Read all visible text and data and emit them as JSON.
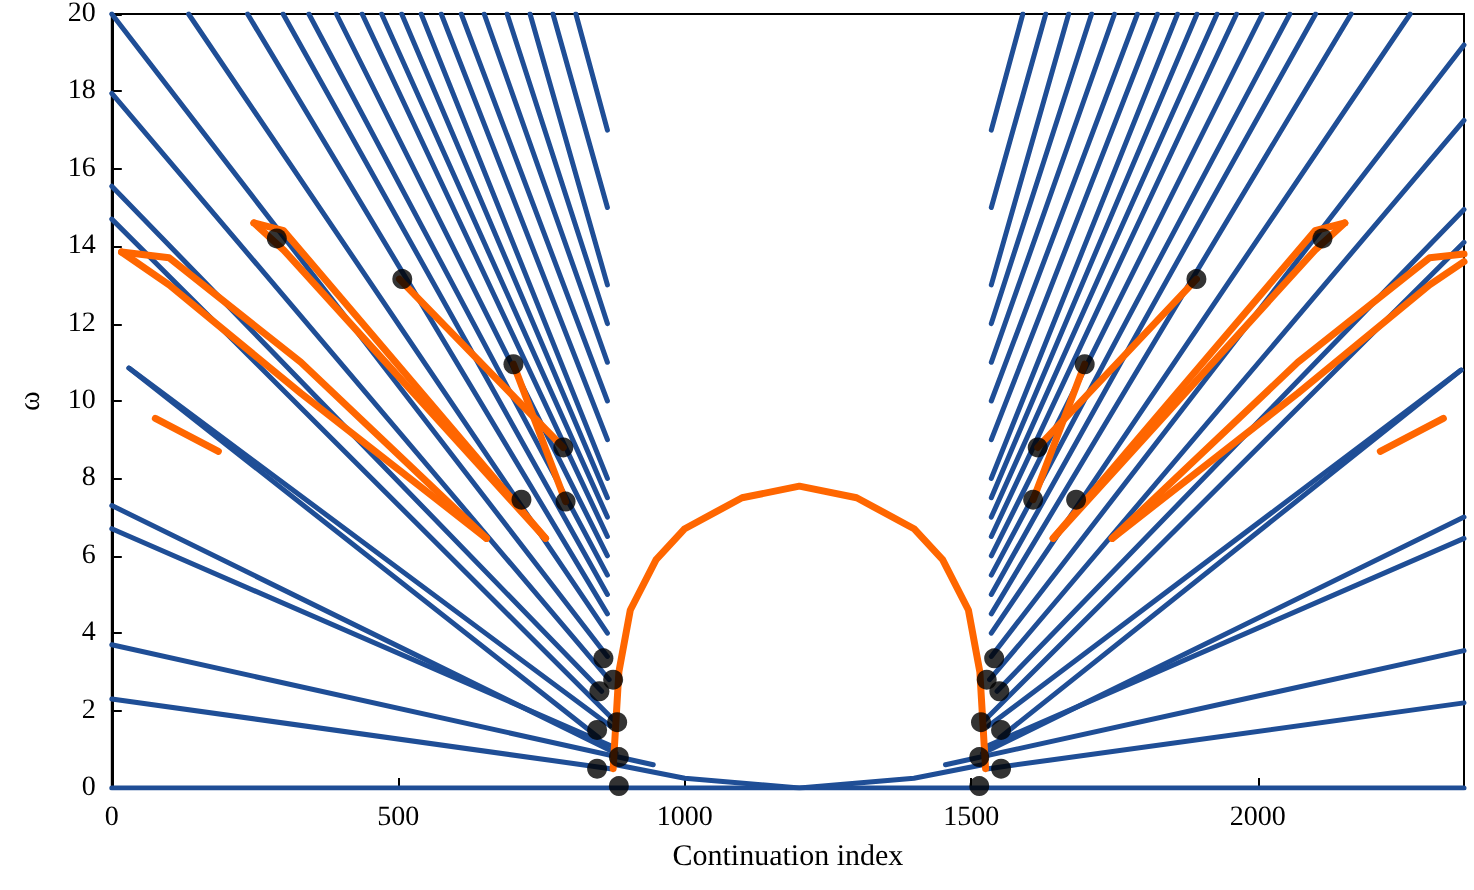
{
  "chart_data": {
    "type": "line",
    "xlabel": "Continuation index",
    "ylabel": "ω",
    "xlim": [
      0,
      2360
    ],
    "ylim": [
      0,
      20
    ],
    "xticks": [
      0,
      500,
      1000,
      1500,
      2000
    ],
    "yticks": [
      0,
      2,
      4,
      6,
      8,
      10,
      12,
      14,
      16,
      18,
      20
    ],
    "grid": false,
    "marker": "none",
    "line_style": "solid",
    "series": [
      {
        "color": "#1f4e96",
        "x": [
          0,
          2360
        ],
        "values": [
          0,
          0
        ]
      },
      {
        "color": "#1f4e96",
        "x": [
          880,
          1000,
          1200,
          1400,
          1520
        ],
        "values": [
          0.6,
          0.25,
          0,
          0.25,
          0.6
        ]
      },
      {
        "color": "#1f4e96",
        "x": [
          0,
          865
        ],
        "values": [
          20,
          3.4
        ]
      },
      {
        "color": "#1f4e96",
        "x": [
          0,
          868
        ],
        "values": [
          17.95,
          2.8
        ]
      },
      {
        "color": "#1f4e96",
        "x": [
          0,
          855
        ],
        "values": [
          15.55,
          2.5
        ]
      },
      {
        "color": "#1f4e96",
        "x": [
          0,
          880
        ],
        "values": [
          14.7,
          1.7
        ]
      },
      {
        "color": "#1f4e96",
        "x": [
          30,
          850
        ],
        "values": [
          10.85,
          1.3
        ]
      },
      {
        "color": "#1f4e96",
        "x": [
          30,
          870
        ],
        "values": [
          10.85,
          1.6
        ]
      },
      {
        "color": "#1f4e96",
        "x": [
          0,
          880
        ],
        "values": [
          7.3,
          0.9
        ]
      },
      {
        "color": "#1f4e96",
        "x": [
          0,
          870
        ],
        "values": [
          6.7,
          1.1
        ]
      },
      {
        "color": "#1f4e96",
        "x": [
          0,
          945
        ],
        "values": [
          3.7,
          0.6
        ]
      },
      {
        "color": "#1f4e96",
        "x": [
          0,
          870
        ],
        "values": [
          2.3,
          0.5
        ]
      },
      {
        "color": "#1f4e96",
        "x": [
          134,
          865
        ],
        "values": [
          20,
          4
        ]
      },
      {
        "color": "#1f4e96",
        "x": [
          237,
          865
        ],
        "values": [
          20,
          4.5
        ]
      },
      {
        "color": "#1f4e96",
        "x": [
          299,
          865
        ],
        "values": [
          20,
          5
        ]
      },
      {
        "color": "#1f4e96",
        "x": [
          344,
          865
        ],
        "values": [
          20,
          5.5
        ]
      },
      {
        "color": "#1f4e96",
        "x": [
          392,
          865
        ],
        "values": [
          20,
          6
        ]
      },
      {
        "color": "#1f4e96",
        "x": [
          437,
          865
        ],
        "values": [
          20,
          6.5
        ]
      },
      {
        "color": "#1f4e96",
        "x": [
          471,
          865
        ],
        "values": [
          20,
          7
        ]
      },
      {
        "color": "#1f4e96",
        "x": [
          506,
          865
        ],
        "values": [
          20,
          7.5
        ]
      },
      {
        "color": "#1f4e96",
        "x": [
          540,
          865
        ],
        "values": [
          20,
          8
        ]
      },
      {
        "color": "#1f4e96",
        "x": [
          575,
          865
        ],
        "values": [
          20,
          9
        ]
      },
      {
        "color": "#1f4e96",
        "x": [
          610,
          865
        ],
        "values": [
          20,
          10
        ]
      },
      {
        "color": "#1f4e96",
        "x": [
          650,
          865
        ],
        "values": [
          20,
          11
        ]
      },
      {
        "color": "#1f4e96",
        "x": [
          690,
          865
        ],
        "values": [
          20,
          12
        ]
      },
      {
        "color": "#1f4e96",
        "x": [
          730,
          865
        ],
        "values": [
          20,
          13
        ]
      },
      {
        "color": "#1f4e96",
        "x": [
          770,
          865
        ],
        "values": [
          20,
          15
        ]
      },
      {
        "color": "#1f4e96",
        "x": [
          810,
          865
        ],
        "values": [
          20,
          17
        ]
      },
      {
        "color": "#1f4e96",
        "x": [
          2360,
          1535
        ],
        "values": [
          19.2,
          3.4
        ]
      },
      {
        "color": "#1f4e96",
        "x": [
          2360,
          1532
        ],
        "values": [
          17.25,
          2.8
        ]
      },
      {
        "color": "#1f4e96",
        "x": [
          2360,
          1545
        ],
        "values": [
          14.95,
          2.5
        ]
      },
      {
        "color": "#1f4e96",
        "x": [
          2360,
          1520
        ],
        "values": [
          14.1,
          1.7
        ]
      },
      {
        "color": "#1f4e96",
        "x": [
          1550,
          2355
        ],
        "values": [
          1.3,
          10.8
        ]
      },
      {
        "color": "#1f4e96",
        "x": [
          1530,
          2355
        ],
        "values": [
          1.6,
          10.8
        ]
      },
      {
        "color": "#1f4e96",
        "x": [
          2360,
          1520
        ],
        "values": [
          7.0,
          0.9
        ]
      },
      {
        "color": "#1f4e96",
        "x": [
          2360,
          1530
        ],
        "values": [
          6.45,
          1.1
        ]
      },
      {
        "color": "#1f4e96",
        "x": [
          2360,
          1455
        ],
        "values": [
          3.55,
          0.6
        ]
      },
      {
        "color": "#1f4e96",
        "x": [
          2360,
          1530
        ],
        "values": [
          2.2,
          0.5
        ]
      },
      {
        "color": "#1f4e96",
        "x": [
          2266,
          1535
        ],
        "values": [
          20,
          4
        ]
      },
      {
        "color": "#1f4e96",
        "x": [
          2163,
          1535
        ],
        "values": [
          20,
          4.5
        ]
      },
      {
        "color": "#1f4e96",
        "x": [
          2101,
          1535
        ],
        "values": [
          20,
          5
        ]
      },
      {
        "color": "#1f4e96",
        "x": [
          2056,
          1535
        ],
        "values": [
          20,
          5.5
        ]
      },
      {
        "color": "#1f4e96",
        "x": [
          2008,
          1535
        ],
        "values": [
          20,
          6
        ]
      },
      {
        "color": "#1f4e96",
        "x": [
          1963,
          1535
        ],
        "values": [
          20,
          6.5
        ]
      },
      {
        "color": "#1f4e96",
        "x": [
          1929,
          1535
        ],
        "values": [
          20,
          7
        ]
      },
      {
        "color": "#1f4e96",
        "x": [
          1894,
          1535
        ],
        "values": [
          20,
          7.5
        ]
      },
      {
        "color": "#1f4e96",
        "x": [
          1860,
          1535
        ],
        "values": [
          20,
          8
        ]
      },
      {
        "color": "#1f4e96",
        "x": [
          1825,
          1535
        ],
        "values": [
          20,
          9
        ]
      },
      {
        "color": "#1f4e96",
        "x": [
          1790,
          1535
        ],
        "values": [
          20,
          10
        ]
      },
      {
        "color": "#1f4e96",
        "x": [
          1750,
          1535
        ],
        "values": [
          20,
          11
        ]
      },
      {
        "color": "#1f4e96",
        "x": [
          1710,
          1535
        ],
        "values": [
          20,
          12
        ]
      },
      {
        "color": "#1f4e96",
        "x": [
          1670,
          1535
        ],
        "values": [
          20,
          13
        ]
      },
      {
        "color": "#1f4e96",
        "x": [
          1630,
          1535
        ],
        "values": [
          20,
          15
        ]
      },
      {
        "color": "#1f4e96",
        "x": [
          1590,
          1535
        ],
        "values": [
          20,
          17
        ]
      },
      {
        "color": "#ff6600",
        "x": [
          17,
          100,
          330,
          654
        ],
        "values": [
          13.85,
          13.7,
          11.0,
          6.45
        ]
      },
      {
        "color": "#ff6600",
        "x": [
          17,
          100,
          330,
          654
        ],
        "values": [
          13.85,
          13.0,
          10.2,
          6.45
        ]
      },
      {
        "color": "#ff6600",
        "x": [
          1746,
          2070,
          2300,
          2360
        ],
        "values": [
          6.45,
          11.0,
          13.7,
          13.8
        ]
      },
      {
        "color": "#ff6600",
        "x": [
          1746,
          2070,
          2300,
          2360
        ],
        "values": [
          6.45,
          10.2,
          13.0,
          13.6
        ]
      },
      {
        "color": "#ff6600",
        "x": [
          76,
          186
        ],
        "values": [
          9.55,
          8.7
        ]
      },
      {
        "color": "#ff6600",
        "x": [
          2324,
          2214
        ],
        "values": [
          9.55,
          8.7
        ]
      },
      {
        "color": "#ff6600",
        "x": [
          248,
          300,
          757
        ],
        "values": [
          14.6,
          14.4,
          6.45
        ]
      },
      {
        "color": "#ff6600",
        "x": [
          248,
          300,
          757
        ],
        "values": [
          14.6,
          13.9,
          6.45
        ]
      },
      {
        "color": "#ff6600",
        "x": [
          1643,
          2100,
          2152
        ],
        "values": [
          6.45,
          14.4,
          14.6
        ]
      },
      {
        "color": "#ff6600",
        "x": [
          1643,
          2100,
          2152
        ],
        "values": [
          6.45,
          13.9,
          14.6
        ]
      },
      {
        "color": "#ff6600",
        "x": [
          502,
          788
        ],
        "values": [
          13.15,
          8.8
        ]
      },
      {
        "color": "#ff6600",
        "x": [
          1616,
          1893
        ],
        "values": [
          8.8,
          13.15
        ]
      },
      {
        "color": "#ff6600",
        "x": [
          701,
          792
        ],
        "values": [
          10.95,
          7.4
        ]
      },
      {
        "color": "#ff6600",
        "x": [
          1608,
          1698
        ],
        "values": [
          7.45,
          10.95
        ]
      },
      {
        "color": "#ff6600",
        "x": [
          875,
          885,
          905,
          950,
          1000,
          1100,
          1200,
          1300,
          1400,
          1450,
          1495,
          1515,
          1525
        ],
        "values": [
          0.5,
          3.0,
          4.6,
          5.9,
          6.7,
          7.5,
          7.8,
          7.5,
          6.7,
          5.9,
          4.6,
          3.0,
          0.5
        ]
      },
      {
        "type": "scatter",
        "marker": "circle",
        "color": "#000000",
        "x": [
          858,
          875,
          851,
          882,
          847,
          885,
          847,
          885,
          288,
          507,
          701,
          788,
          715,
          792,
          1540,
          1527,
          1549,
          1517,
          1552,
          1514,
          1552,
          1514,
          2113,
          1893,
          1698,
          1616,
          1608,
          1683
        ],
        "values": [
          3.35,
          2.8,
          2.5,
          1.7,
          1.5,
          0.8,
          0.5,
          0.05,
          14.2,
          13.15,
          10.95,
          8.8,
          7.45,
          7.4,
          3.35,
          2.8,
          2.5,
          1.7,
          1.5,
          0.8,
          0.5,
          0.05,
          14.2,
          13.15,
          10.95,
          8.8,
          7.45,
          7.45
        ]
      }
    ]
  }
}
